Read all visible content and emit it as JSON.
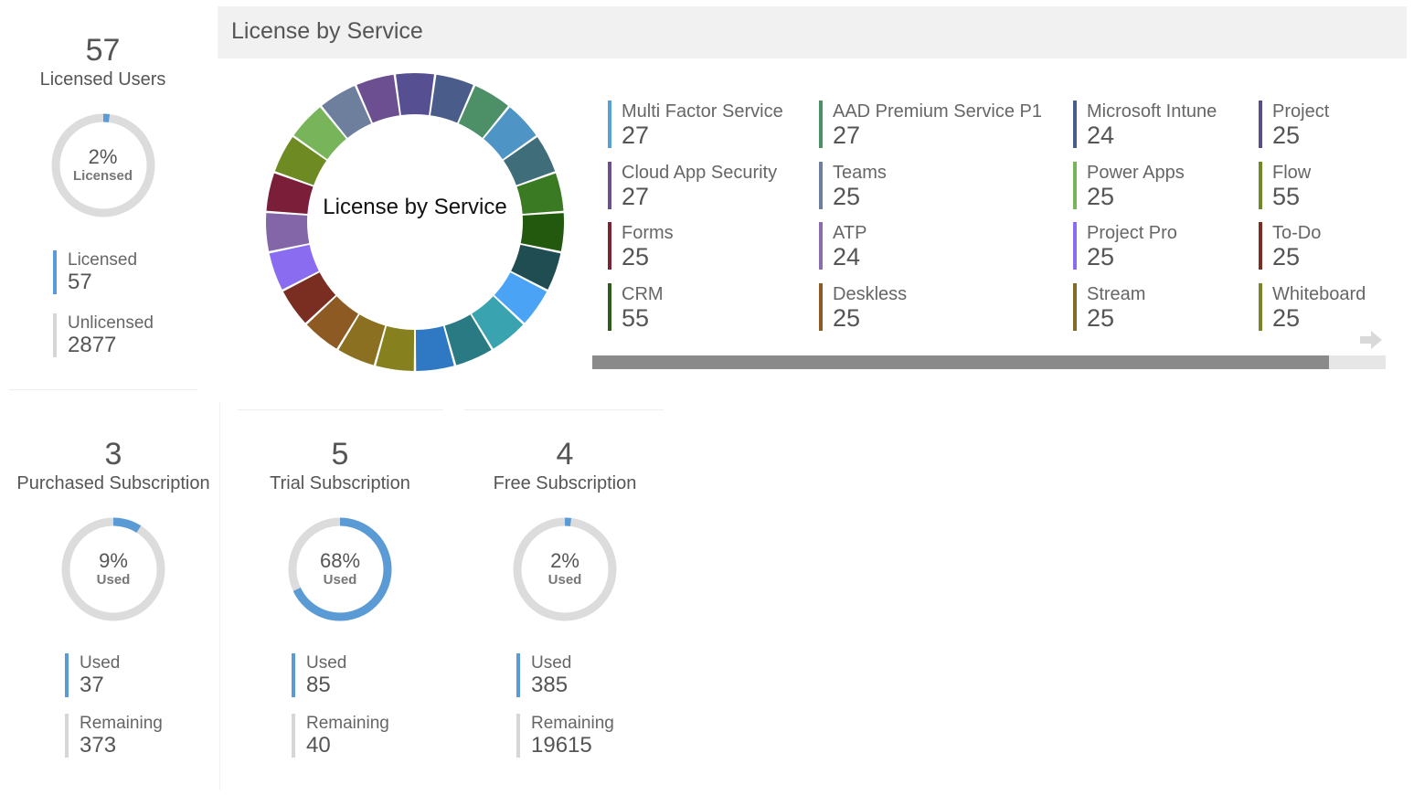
{
  "licensed_users": {
    "count": "57",
    "title": "Licensed Users",
    "percent": "2%",
    "percent_label": "Licensed",
    "fraction": 0.02,
    "stats": [
      {
        "label": "Licensed",
        "value": "57"
      },
      {
        "label": "Unlicensed",
        "value": "2877"
      }
    ]
  },
  "license_panel": {
    "header": "License by Service",
    "donut_title": "License by Service"
  },
  "subscriptions": [
    {
      "count": "3",
      "title": "Purchased Subscription",
      "percent": "9%",
      "percent_label": "Used",
      "fraction": 0.09,
      "used_label": "Used",
      "used": "37",
      "remaining_label": "Remaining",
      "remaining": "373"
    },
    {
      "count": "5",
      "title": "Trial Subscription",
      "percent": "68%",
      "percent_label": "Used",
      "fraction": 0.68,
      "used_label": "Used",
      "used": "85",
      "remaining_label": "Remaining",
      "remaining": "40"
    },
    {
      "count": "4",
      "title": "Free Subscription",
      "percent": "2%",
      "percent_label": "Used",
      "fraction": 0.02,
      "used_label": "Used",
      "used": "385",
      "remaining_label": "Remaining",
      "remaining": "19615"
    }
  ],
  "colors": {
    "accent": "#5b9bd5",
    "track": "#dcdcdc"
  },
  "chart_data": {
    "type": "pie",
    "title": "License by Service",
    "donut": true,
    "categories": [
      "Multi Factor Service",
      "Cloud App Security",
      "Forms",
      "CRM",
      "AAD Premium Service P1",
      "Teams",
      "ATP",
      "Deskless",
      "Microsoft Intune",
      "Power Apps",
      "Project Pro",
      "Stream",
      "Project",
      "Flow",
      "To-Do",
      "Whiteboard"
    ],
    "values": [
      27,
      27,
      25,
      55,
      27,
      25,
      24,
      25,
      24,
      25,
      25,
      25,
      25,
      55,
      25,
      25
    ],
    "colors": [
      "#5a9fd4",
      "#6b4f91",
      "#7a2333",
      "#2d5b1b",
      "#4d9068",
      "#6e7f9e",
      "#8a6db0",
      "#8c5a22",
      "#4a5d8a",
      "#78b45a",
      "#8a6cf0",
      "#826a28",
      "#5a4d8c",
      "#6e8a22",
      "#7a2e22",
      "#7a8427"
    ],
    "legend": [
      {
        "label": "Multi Factor Service",
        "value": "27"
      },
      {
        "label": "Cloud App Security",
        "value": "27"
      },
      {
        "label": "Forms",
        "value": "25"
      },
      {
        "label": "CRM",
        "value": "55"
      },
      {
        "label": "AAD Premium Service P1",
        "value": "27"
      },
      {
        "label": "Teams",
        "value": "25"
      },
      {
        "label": "ATP",
        "value": "24"
      },
      {
        "label": "Deskless",
        "value": "25"
      },
      {
        "label": "Microsoft Intune",
        "value": "24"
      },
      {
        "label": "Power Apps",
        "value": "25"
      },
      {
        "label": "Project Pro",
        "value": "25"
      },
      {
        "label": "Stream",
        "value": "25"
      },
      {
        "label": "Project",
        "value": "25"
      },
      {
        "label": "Flow",
        "value": "55"
      },
      {
        "label": "To-Do",
        "value": "25"
      },
      {
        "label": "Whiteboard",
        "value": "25"
      }
    ],
    "ring_segment_colors": [
      "#565092",
      "#4a5d8a",
      "#4d9068",
      "#4e94c4",
      "#3f6e7a",
      "#3a7a22",
      "#23590f",
      "#1f4d52",
      "#4aa3f5",
      "#3aa3b0",
      "#2a7a84",
      "#2e78c4",
      "#86801f",
      "#8a7020",
      "#8c5a22",
      "#7a2e22",
      "#8a6cf0",
      "#8266a8",
      "#7a1e3a",
      "#6e8a22",
      "#78b45a",
      "#6e7f9e",
      "#6b4f91"
    ]
  },
  "scrollbar": {
    "position_fraction": 0.93
  }
}
